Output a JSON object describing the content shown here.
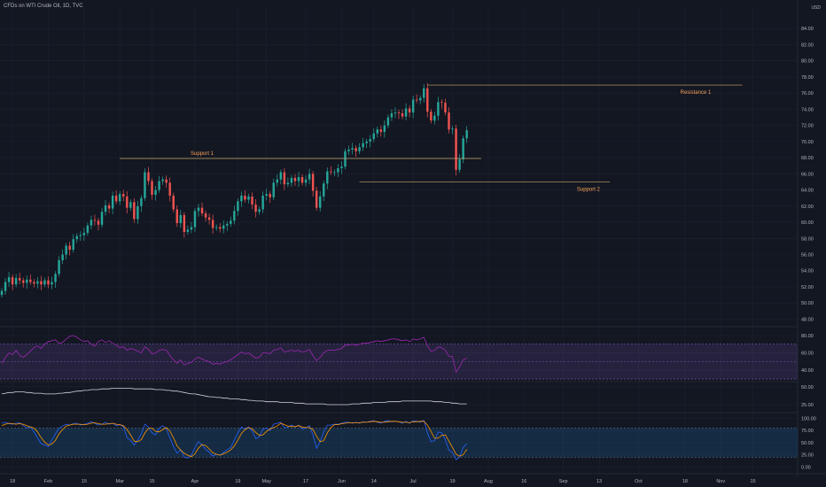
{
  "header": {
    "title": "CFDs on WTI Crude Oil, 1D, TVC",
    "currency": "USD"
  },
  "colors": {
    "bg": "#131722",
    "grid": "#1e2230",
    "up": "#26a69a",
    "down": "#ef5350",
    "level": "#c8a86a",
    "annotation": "#f5a05a",
    "rsi": "#9c27b0",
    "adx": "#d1d4dc",
    "stoch_k": "#2962ff",
    "stoch_d": "#ff9800"
  },
  "chart_data": [
    {
      "type": "candlestick",
      "title": "CFDs on WTI Crude Oil, 1D, TVC",
      "xlabel": "",
      "ylabel": "",
      "ylim": [
        47.5,
        86
      ],
      "grid": true,
      "y_ticks": [
        "84.00",
        "82.00",
        "80.00",
        "78.00",
        "76.00",
        "74.00",
        "72.00",
        "70.00",
        "68.00",
        "66.00",
        "64.00",
        "62.00",
        "60.00",
        "58.00",
        "56.00",
        "54.00",
        "52.00",
        "50.00",
        "48.00"
      ],
      "x_ticks": [
        {
          "label": "18",
          "index": 3
        },
        {
          "label": "Feb",
          "index": 13
        },
        {
          "label": "15",
          "index": 23
        },
        {
          "label": "Mar",
          "index": 33
        },
        {
          "label": "15",
          "index": 42
        },
        {
          "label": "Apr",
          "index": 54
        },
        {
          "label": "19",
          "index": 66
        },
        {
          "label": "May",
          "index": 74
        },
        {
          "label": "17",
          "index": 85
        },
        {
          "label": "Jun",
          "index": 95
        },
        {
          "label": "14",
          "index": 104
        },
        {
          "label": "Jul",
          "index": 115
        },
        {
          "label": "19",
          "index": 126
        },
        {
          "label": "Aug",
          "index": 136
        },
        {
          "label": "16",
          "index": 146
        },
        {
          "label": "Sep",
          "index": 157
        },
        {
          "label": "13",
          "index": 167
        },
        {
          "label": "Oct",
          "index": 178
        },
        {
          "label": "18",
          "index": 191
        },
        {
          "label": "Nov",
          "index": 201
        },
        {
          "label": "15",
          "index": 210
        }
      ],
      "x_total": 223,
      "closes": [
        51.5,
        52.6,
        53.2,
        52.3,
        53.1,
        52.8,
        52.5,
        52.9,
        52.6,
        52.4,
        52.7,
        52.3,
        52.8,
        52.3,
        52.6,
        53.6,
        55.3,
        56.0,
        57.1,
        56.6,
        57.9,
        58.3,
        58.4,
        58.7,
        59.6,
        60.3,
        60.2,
        59.7,
        61.3,
        62.1,
        61.7,
        63.3,
        62.6,
        63.5,
        63.2,
        61.8,
        62.5,
        60.4,
        62.0,
        63.0,
        66.2,
        65.1,
        63.4,
        64.0,
        65.1,
        65.3,
        64.9,
        63.3,
        61.6,
        59.9,
        60.9,
        58.8,
        59.1,
        59.4,
        61.4,
        61.8,
        61.1,
        60.6,
        60.3,
        59.3,
        59.4,
        59.2,
        59.6,
        59.8,
        60.2,
        61.4,
        62.6,
        63.3,
        62.8,
        63.2,
        62.2,
        61.3,
        61.6,
        63.3,
        63.5,
        63.1,
        64.9,
        65.3,
        66.2,
        64.7,
        64.9,
        65.5,
        65.1,
        65.6,
        64.9,
        65.3,
        66.0,
        63.9,
        61.8,
        63.2,
        64.8,
        66.3,
        66.2,
        66.2,
        66.7,
        66.9,
        68.8,
        69.0,
        69.2,
        68.8,
        69.3,
        69.8,
        70.0,
        70.3,
        71.0,
        71.5,
        71.2,
        72.0,
        73.0,
        73.5,
        73.6,
        73.5,
        73.1,
        74.1,
        73.6,
        75.2,
        75.1,
        75.4,
        76.6,
        73.7,
        72.6,
        73.2,
        74.9,
        74.8,
        73.6,
        71.5,
        71.6,
        66.5,
        67.8,
        70.4,
        71.4
      ],
      "opens": [
        51.0,
        51.5,
        52.6,
        53.2,
        52.3,
        53.1,
        52.8,
        52.5,
        52.9,
        52.6,
        52.4,
        52.7,
        52.3,
        52.8,
        52.3,
        52.6,
        53.6,
        55.3,
        56.0,
        57.1,
        56.6,
        57.9,
        58.3,
        58.4,
        58.7,
        59.6,
        60.3,
        60.2,
        59.7,
        61.3,
        62.1,
        61.7,
        63.3,
        62.6,
        63.5,
        63.2,
        61.8,
        62.5,
        60.4,
        62.0,
        63.0,
        66.2,
        65.1,
        63.4,
        64.0,
        65.1,
        65.3,
        64.9,
        63.3,
        61.6,
        59.9,
        60.9,
        58.8,
        59.1,
        59.4,
        61.4,
        61.8,
        61.1,
        60.6,
        60.3,
        59.3,
        59.4,
        59.2,
        59.6,
        59.8,
        60.2,
        61.4,
        62.6,
        63.3,
        62.8,
        63.2,
        62.2,
        61.3,
        61.6,
        63.3,
        63.5,
        63.1,
        64.9,
        65.3,
        66.2,
        64.7,
        64.9,
        65.5,
        65.1,
        65.6,
        64.9,
        65.3,
        66.0,
        63.9,
        61.8,
        63.2,
        64.8,
        66.3,
        66.2,
        66.2,
        66.7,
        66.9,
        68.8,
        69.0,
        69.2,
        68.8,
        69.3,
        69.8,
        70.0,
        70.3,
        71.0,
        71.5,
        71.2,
        72.0,
        73.0,
        73.5,
        73.6,
        73.5,
        73.1,
        74.1,
        73.6,
        75.2,
        75.1,
        75.4,
        76.6,
        73.7,
        72.6,
        73.2,
        74.9,
        74.8,
        73.6,
        71.5,
        71.6,
        66.5,
        67.8,
        70.4
      ],
      "annotations": [
        {
          "label": "Support 1",
          "price": 67.9,
          "from": 33,
          "to": 134,
          "label_index": 56
        },
        {
          "label": "Resistance 1",
          "price": 77.0,
          "from": 119,
          "to": 207,
          "label_index": 194
        },
        {
          "label": "Support 2",
          "price": 65.0,
          "from": 100,
          "to": 170,
          "label_index": 164
        }
      ]
    },
    {
      "type": "line",
      "title": "",
      "ylim": [
        28,
        86
      ],
      "y_ticks": [
        "80.00",
        "60.00",
        "40.00"
      ],
      "bands": [
        70,
        30
      ],
      "midline": 50,
      "series": [
        {
          "values": [
            48,
            55,
            60,
            58,
            63,
            57,
            55,
            58,
            62,
            66,
            68,
            65,
            70,
            73,
            74,
            75,
            71,
            72,
            76,
            79,
            80,
            78,
            75,
            73,
            74,
            70,
            68,
            73,
            75,
            72,
            74,
            71,
            69,
            66,
            67,
            63,
            65,
            64,
            62,
            60,
            67,
            64,
            59,
            60,
            63,
            64,
            63,
            57,
            52,
            48,
            52,
            46,
            48,
            49,
            53,
            55,
            53,
            51,
            50,
            47,
            48,
            47,
            49,
            50,
            52,
            55,
            58,
            61,
            59,
            60,
            57,
            54,
            55,
            60,
            60,
            59,
            63,
            64,
            66,
            61,
            62,
            63,
            62,
            63,
            61,
            62,
            64,
            57,
            51,
            55,
            60,
            63,
            63,
            63,
            64,
            65,
            69,
            69,
            70,
            69,
            70,
            71,
            71,
            72,
            73,
            74,
            73,
            74,
            75,
            76,
            76,
            75,
            74,
            75,
            73,
            76,
            75,
            76,
            78,
            68,
            62,
            63,
            67,
            66,
            63,
            56,
            56,
            38,
            44,
            52,
            54
          ]
        }
      ]
    },
    {
      "type": "line",
      "title": "",
      "ylim": [
        15,
        56
      ],
      "y_ticks": [
        "50.00",
        "25.00"
      ],
      "series": [
        {
          "values": [
            40,
            41,
            42,
            42,
            43,
            43,
            43,
            42,
            42,
            41,
            41,
            41,
            40,
            40,
            40,
            40,
            41,
            41,
            42,
            42,
            43,
            44,
            44,
            45,
            45,
            46,
            46,
            46,
            47,
            47,
            47,
            48,
            48,
            48,
            48,
            48,
            48,
            47,
            47,
            47,
            47,
            47,
            47,
            46,
            46,
            46,
            45,
            45,
            44,
            44,
            43,
            42,
            41,
            40,
            40,
            39,
            38,
            37,
            36,
            36,
            35,
            35,
            34,
            34,
            33,
            33,
            33,
            32,
            32,
            31,
            31,
            30,
            30,
            30,
            29,
            29,
            29,
            29,
            28,
            28,
            28,
            28,
            27,
            27,
            27,
            26,
            26,
            26,
            26,
            26,
            26,
            25,
            25,
            25,
            25,
            25,
            25,
            25,
            26,
            26,
            26,
            27,
            27,
            27,
            28,
            28,
            28,
            28,
            29,
            29,
            29,
            29,
            30,
            30,
            30,
            30,
            30,
            30,
            30,
            30,
            30,
            29,
            29,
            29,
            28,
            28,
            27,
            27,
            26,
            26,
            26
          ]
        }
      ]
    },
    {
      "type": "line",
      "title": "",
      "ylim": [
        -5,
        110
      ],
      "y_ticks": [
        "100.00",
        "75.00",
        "50.00",
        "25.00",
        "0.00"
      ],
      "bands": [
        80,
        20
      ],
      "series": [
        {
          "values": [
            90,
            92,
            89,
            88,
            90,
            91,
            85,
            80,
            83,
            72,
            60,
            48,
            45,
            42,
            55,
            68,
            80,
            84,
            88,
            86,
            89,
            90,
            86,
            88,
            90,
            93,
            90,
            86,
            88,
            92,
            88,
            90,
            85,
            87,
            83,
            60,
            55,
            45,
            55,
            68,
            88,
            82,
            70,
            66,
            80,
            85,
            78,
            60,
            42,
            28,
            35,
            20,
            18,
            24,
            40,
            52,
            45,
            36,
            30,
            22,
            26,
            24,
            30,
            35,
            40,
            55,
            70,
            82,
            78,
            82,
            74,
            58,
            62,
            78,
            80,
            75,
            88,
            90,
            92,
            80,
            82,
            86,
            82,
            86,
            78,
            80,
            85,
            66,
            38,
            52,
            72,
            86,
            86,
            88,
            88,
            90,
            92,
            92,
            90,
            92,
            90,
            93,
            92,
            94,
            95,
            92,
            90,
            94,
            95,
            93,
            94,
            93,
            90,
            94,
            90,
            95,
            94,
            92,
            96,
            70,
            52,
            54,
            72,
            70,
            56,
            34,
            30,
            15,
            20,
            40,
            48
          ]
        },
        {
          "values": [
            85,
            88,
            90,
            89,
            88,
            89,
            88,
            85,
            82,
            80,
            72,
            60,
            51,
            45,
            47,
            55,
            68,
            77,
            84,
            86,
            88,
            88,
            88,
            87,
            88,
            90,
            91,
            89,
            88,
            88,
            89,
            90,
            88,
            87,
            85,
            77,
            66,
            53,
            52,
            56,
            70,
            79,
            80,
            73,
            72,
            77,
            81,
            74,
            60,
            43,
            35,
            28,
            24,
            21,
            27,
            39,
            46,
            44,
            37,
            29,
            26,
            24,
            27,
            30,
            35,
            43,
            55,
            69,
            77,
            81,
            78,
            71,
            65,
            66,
            73,
            78,
            81,
            84,
            90,
            87,
            84,
            83,
            83,
            85,
            82,
            81,
            81,
            77,
            63,
            52,
            54,
            70,
            81,
            87,
            87,
            89,
            90,
            91,
            91,
            91,
            91,
            92,
            92,
            93,
            94,
            93,
            92,
            92,
            93,
            94,
            94,
            93,
            92,
            92,
            91,
            93,
            93,
            94,
            94,
            86,
            73,
            59,
            59,
            65,
            66,
            53,
            40,
            26,
            22,
            25,
            36
          ]
        }
      ]
    }
  ]
}
